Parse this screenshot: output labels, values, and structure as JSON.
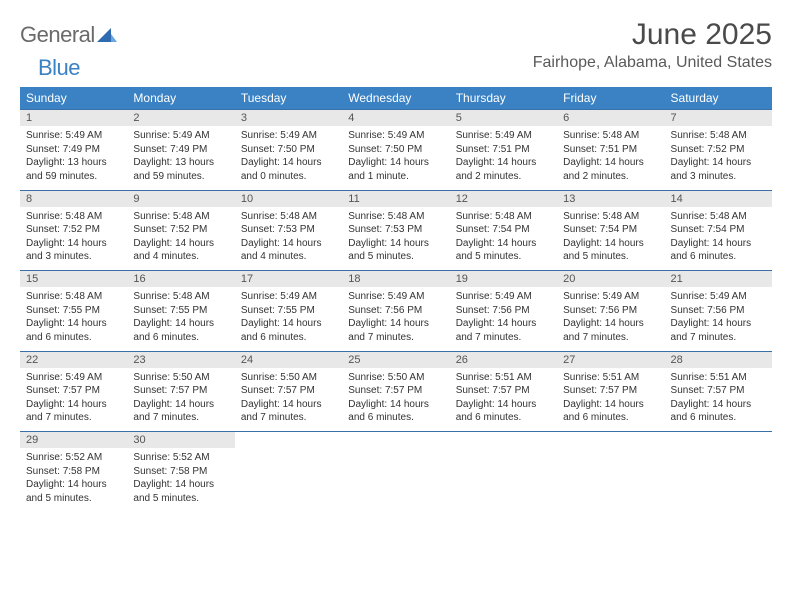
{
  "brand": {
    "text1": "General",
    "text2": "Blue"
  },
  "title": "June 2025",
  "location": "Fairhope, Alabama, United States",
  "colors": {
    "header_bg": "#3a82c4",
    "header_text": "#ffffff",
    "daynum_bg": "#e8e8e8",
    "border": "#3a6fa8",
    "body_text": "#333333",
    "title_text": "#4a4a4a",
    "location_text": "#5a5a5a",
    "logo_gray": "#6a6a6a",
    "logo_blue": "#3a82c4",
    "page_bg": "#ffffff"
  },
  "typography": {
    "title_fontsize": 30,
    "location_fontsize": 16,
    "dayheader_fontsize": 12,
    "daynum_fontsize": 11,
    "cell_fontsize": 10
  },
  "day_headers": [
    "Sunday",
    "Monday",
    "Tuesday",
    "Wednesday",
    "Thursday",
    "Friday",
    "Saturday"
  ],
  "weeks": [
    [
      {
        "num": "1",
        "sunrise": "Sunrise: 5:49 AM",
        "sunset": "Sunset: 7:49 PM",
        "daylight": "Daylight: 13 hours and 59 minutes."
      },
      {
        "num": "2",
        "sunrise": "Sunrise: 5:49 AM",
        "sunset": "Sunset: 7:49 PM",
        "daylight": "Daylight: 13 hours and 59 minutes."
      },
      {
        "num": "3",
        "sunrise": "Sunrise: 5:49 AM",
        "sunset": "Sunset: 7:50 PM",
        "daylight": "Daylight: 14 hours and 0 minutes."
      },
      {
        "num": "4",
        "sunrise": "Sunrise: 5:49 AM",
        "sunset": "Sunset: 7:50 PM",
        "daylight": "Daylight: 14 hours and 1 minute."
      },
      {
        "num": "5",
        "sunrise": "Sunrise: 5:49 AM",
        "sunset": "Sunset: 7:51 PM",
        "daylight": "Daylight: 14 hours and 2 minutes."
      },
      {
        "num": "6",
        "sunrise": "Sunrise: 5:48 AM",
        "sunset": "Sunset: 7:51 PM",
        "daylight": "Daylight: 14 hours and 2 minutes."
      },
      {
        "num": "7",
        "sunrise": "Sunrise: 5:48 AM",
        "sunset": "Sunset: 7:52 PM",
        "daylight": "Daylight: 14 hours and 3 minutes."
      }
    ],
    [
      {
        "num": "8",
        "sunrise": "Sunrise: 5:48 AM",
        "sunset": "Sunset: 7:52 PM",
        "daylight": "Daylight: 14 hours and 3 minutes."
      },
      {
        "num": "9",
        "sunrise": "Sunrise: 5:48 AM",
        "sunset": "Sunset: 7:52 PM",
        "daylight": "Daylight: 14 hours and 4 minutes."
      },
      {
        "num": "10",
        "sunrise": "Sunrise: 5:48 AM",
        "sunset": "Sunset: 7:53 PM",
        "daylight": "Daylight: 14 hours and 4 minutes."
      },
      {
        "num": "11",
        "sunrise": "Sunrise: 5:48 AM",
        "sunset": "Sunset: 7:53 PM",
        "daylight": "Daylight: 14 hours and 5 minutes."
      },
      {
        "num": "12",
        "sunrise": "Sunrise: 5:48 AM",
        "sunset": "Sunset: 7:54 PM",
        "daylight": "Daylight: 14 hours and 5 minutes."
      },
      {
        "num": "13",
        "sunrise": "Sunrise: 5:48 AM",
        "sunset": "Sunset: 7:54 PM",
        "daylight": "Daylight: 14 hours and 5 minutes."
      },
      {
        "num": "14",
        "sunrise": "Sunrise: 5:48 AM",
        "sunset": "Sunset: 7:54 PM",
        "daylight": "Daylight: 14 hours and 6 minutes."
      }
    ],
    [
      {
        "num": "15",
        "sunrise": "Sunrise: 5:48 AM",
        "sunset": "Sunset: 7:55 PM",
        "daylight": "Daylight: 14 hours and 6 minutes."
      },
      {
        "num": "16",
        "sunrise": "Sunrise: 5:48 AM",
        "sunset": "Sunset: 7:55 PM",
        "daylight": "Daylight: 14 hours and 6 minutes."
      },
      {
        "num": "17",
        "sunrise": "Sunrise: 5:49 AM",
        "sunset": "Sunset: 7:55 PM",
        "daylight": "Daylight: 14 hours and 6 minutes."
      },
      {
        "num": "18",
        "sunrise": "Sunrise: 5:49 AM",
        "sunset": "Sunset: 7:56 PM",
        "daylight": "Daylight: 14 hours and 7 minutes."
      },
      {
        "num": "19",
        "sunrise": "Sunrise: 5:49 AM",
        "sunset": "Sunset: 7:56 PM",
        "daylight": "Daylight: 14 hours and 7 minutes."
      },
      {
        "num": "20",
        "sunrise": "Sunrise: 5:49 AM",
        "sunset": "Sunset: 7:56 PM",
        "daylight": "Daylight: 14 hours and 7 minutes."
      },
      {
        "num": "21",
        "sunrise": "Sunrise: 5:49 AM",
        "sunset": "Sunset: 7:56 PM",
        "daylight": "Daylight: 14 hours and 7 minutes."
      }
    ],
    [
      {
        "num": "22",
        "sunrise": "Sunrise: 5:49 AM",
        "sunset": "Sunset: 7:57 PM",
        "daylight": "Daylight: 14 hours and 7 minutes."
      },
      {
        "num": "23",
        "sunrise": "Sunrise: 5:50 AM",
        "sunset": "Sunset: 7:57 PM",
        "daylight": "Daylight: 14 hours and 7 minutes."
      },
      {
        "num": "24",
        "sunrise": "Sunrise: 5:50 AM",
        "sunset": "Sunset: 7:57 PM",
        "daylight": "Daylight: 14 hours and 7 minutes."
      },
      {
        "num": "25",
        "sunrise": "Sunrise: 5:50 AM",
        "sunset": "Sunset: 7:57 PM",
        "daylight": "Daylight: 14 hours and 6 minutes."
      },
      {
        "num": "26",
        "sunrise": "Sunrise: 5:51 AM",
        "sunset": "Sunset: 7:57 PM",
        "daylight": "Daylight: 14 hours and 6 minutes."
      },
      {
        "num": "27",
        "sunrise": "Sunrise: 5:51 AM",
        "sunset": "Sunset: 7:57 PM",
        "daylight": "Daylight: 14 hours and 6 minutes."
      },
      {
        "num": "28",
        "sunrise": "Sunrise: 5:51 AM",
        "sunset": "Sunset: 7:57 PM",
        "daylight": "Daylight: 14 hours and 6 minutes."
      }
    ],
    [
      {
        "num": "29",
        "sunrise": "Sunrise: 5:52 AM",
        "sunset": "Sunset: 7:58 PM",
        "daylight": "Daylight: 14 hours and 5 minutes."
      },
      {
        "num": "30",
        "sunrise": "Sunrise: 5:52 AM",
        "sunset": "Sunset: 7:58 PM",
        "daylight": "Daylight: 14 hours and 5 minutes."
      },
      null,
      null,
      null,
      null,
      null
    ]
  ]
}
